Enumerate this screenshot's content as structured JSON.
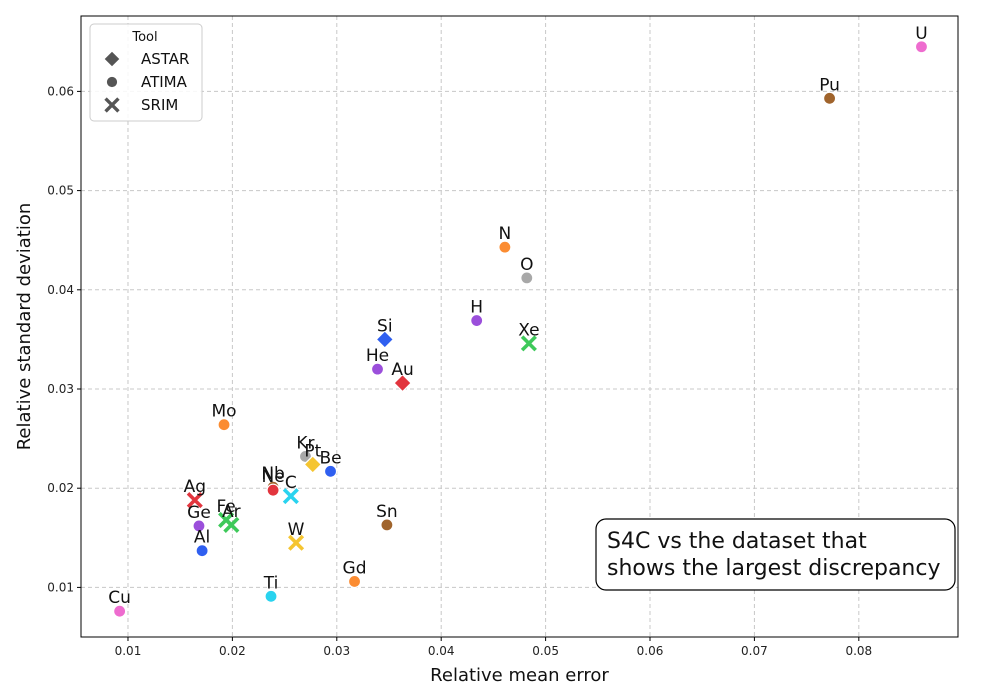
{
  "chart_data": {
    "type": "scatter",
    "xlabel": "Relative mean error",
    "ylabel": "Relative standard deviation",
    "xlim": [
      0.0055,
      0.0895
    ],
    "ylim": [
      0.005,
      0.0676
    ],
    "xticks": [
      0.01,
      0.02,
      0.03,
      0.04,
      0.05,
      0.06,
      0.07,
      0.08
    ],
    "yticks": [
      0.01,
      0.02,
      0.03,
      0.04,
      0.05,
      0.06
    ],
    "xtick_labels": [
      "0.01",
      "0.02",
      "0.03",
      "0.04",
      "0.05",
      "0.06",
      "0.07",
      "0.08"
    ],
    "ytick_labels": [
      "0.01",
      "0.02",
      "0.03",
      "0.04",
      "0.05",
      "0.06"
    ],
    "grid": true,
    "legend": {
      "title": "Tool",
      "placement": "top-left",
      "entries": [
        {
          "label": "ASTAR",
          "marker": "diamond"
        },
        {
          "label": "ATIMA",
          "marker": "circle"
        },
        {
          "label": "SRIM",
          "marker": "x"
        }
      ]
    },
    "annotation": "S4C vs the dataset that shows the largest discrepancy",
    "annotation_lines": [
      "S4C vs the dataset that",
      "shows the largest discrepancy"
    ],
    "points": [
      {
        "label": "U",
        "tool": "ATIMA",
        "x": 0.086,
        "y": 0.0645,
        "color": "#ee6ccf"
      },
      {
        "label": "Pu",
        "tool": "ATIMA",
        "x": 0.0772,
        "y": 0.0593,
        "color": "#a0642c"
      },
      {
        "label": "N",
        "tool": "ATIMA",
        "x": 0.0461,
        "y": 0.0443,
        "color": "#fb8c32"
      },
      {
        "label": "O",
        "tool": "ATIMA",
        "x": 0.0482,
        "y": 0.0412,
        "color": "#a8a8a8"
      },
      {
        "label": "H",
        "tool": "ATIMA",
        "x": 0.0434,
        "y": 0.0369,
        "color": "#9b4fdb"
      },
      {
        "label": "Xe",
        "tool": "SRIM",
        "x": 0.0484,
        "y": 0.0346,
        "color": "#3ec95a"
      },
      {
        "label": "Si",
        "tool": "ASTAR",
        "x": 0.0346,
        "y": 0.035,
        "color": "#2f5ff0"
      },
      {
        "label": "He",
        "tool": "ATIMA",
        "x": 0.0339,
        "y": 0.032,
        "color": "#9b4fdb"
      },
      {
        "label": "Au",
        "tool": "ASTAR",
        "x": 0.0363,
        "y": 0.0306,
        "color": "#e2353e"
      },
      {
        "label": "Mo",
        "tool": "ATIMA",
        "x": 0.0192,
        "y": 0.0264,
        "color": "#fb8c32"
      },
      {
        "label": "Kr",
        "tool": "ATIMA",
        "x": 0.027,
        "y": 0.0232,
        "color": "#a8a8a8"
      },
      {
        "label": "Pt",
        "tool": "ASTAR",
        "x": 0.0277,
        "y": 0.0224,
        "color": "#f5c531"
      },
      {
        "label": "Be",
        "tool": "ATIMA",
        "x": 0.0294,
        "y": 0.0217,
        "color": "#2f5ff0"
      },
      {
        "label": "Nb",
        "tool": "ATIMA",
        "x": 0.0239,
        "y": 0.0201,
        "color": "#a0642c"
      },
      {
        "label": "Ne",
        "tool": "ATIMA",
        "x": 0.0239,
        "y": 0.0198,
        "color": "#e2353e"
      },
      {
        "label": "C",
        "tool": "SRIM",
        "x": 0.0256,
        "y": 0.0192,
        "color": "#29d3ef"
      },
      {
        "label": "Ag",
        "tool": "SRIM",
        "x": 0.0164,
        "y": 0.0188,
        "color": "#e2353e"
      },
      {
        "label": "Fe",
        "tool": "SRIM",
        "x": 0.0194,
        "y": 0.0168,
        "color": "#3ec95a"
      },
      {
        "label": "Ar",
        "tool": "SRIM",
        "x": 0.0199,
        "y": 0.0163,
        "color": "#3ec95a"
      },
      {
        "label": "Ge",
        "tool": "ATIMA",
        "x": 0.0168,
        "y": 0.0162,
        "color": "#9b4fdb"
      },
      {
        "label": "Sn",
        "tool": "ATIMA",
        "x": 0.0348,
        "y": 0.0163,
        "color": "#a0642c"
      },
      {
        "label": "W",
        "tool": "SRIM",
        "x": 0.0261,
        "y": 0.0145,
        "color": "#f5c531"
      },
      {
        "label": "Al",
        "tool": "ATIMA",
        "x": 0.0171,
        "y": 0.0137,
        "color": "#2f5ff0"
      },
      {
        "label": "Gd",
        "tool": "ATIMA",
        "x": 0.0317,
        "y": 0.0106,
        "color": "#fb8c32"
      },
      {
        "label": "Ti",
        "tool": "ATIMA",
        "x": 0.0237,
        "y": 0.0091,
        "color": "#29d3ef"
      },
      {
        "label": "Cu",
        "tool": "ATIMA",
        "x": 0.0092,
        "y": 0.0076,
        "color": "#ee6ccf"
      }
    ]
  }
}
